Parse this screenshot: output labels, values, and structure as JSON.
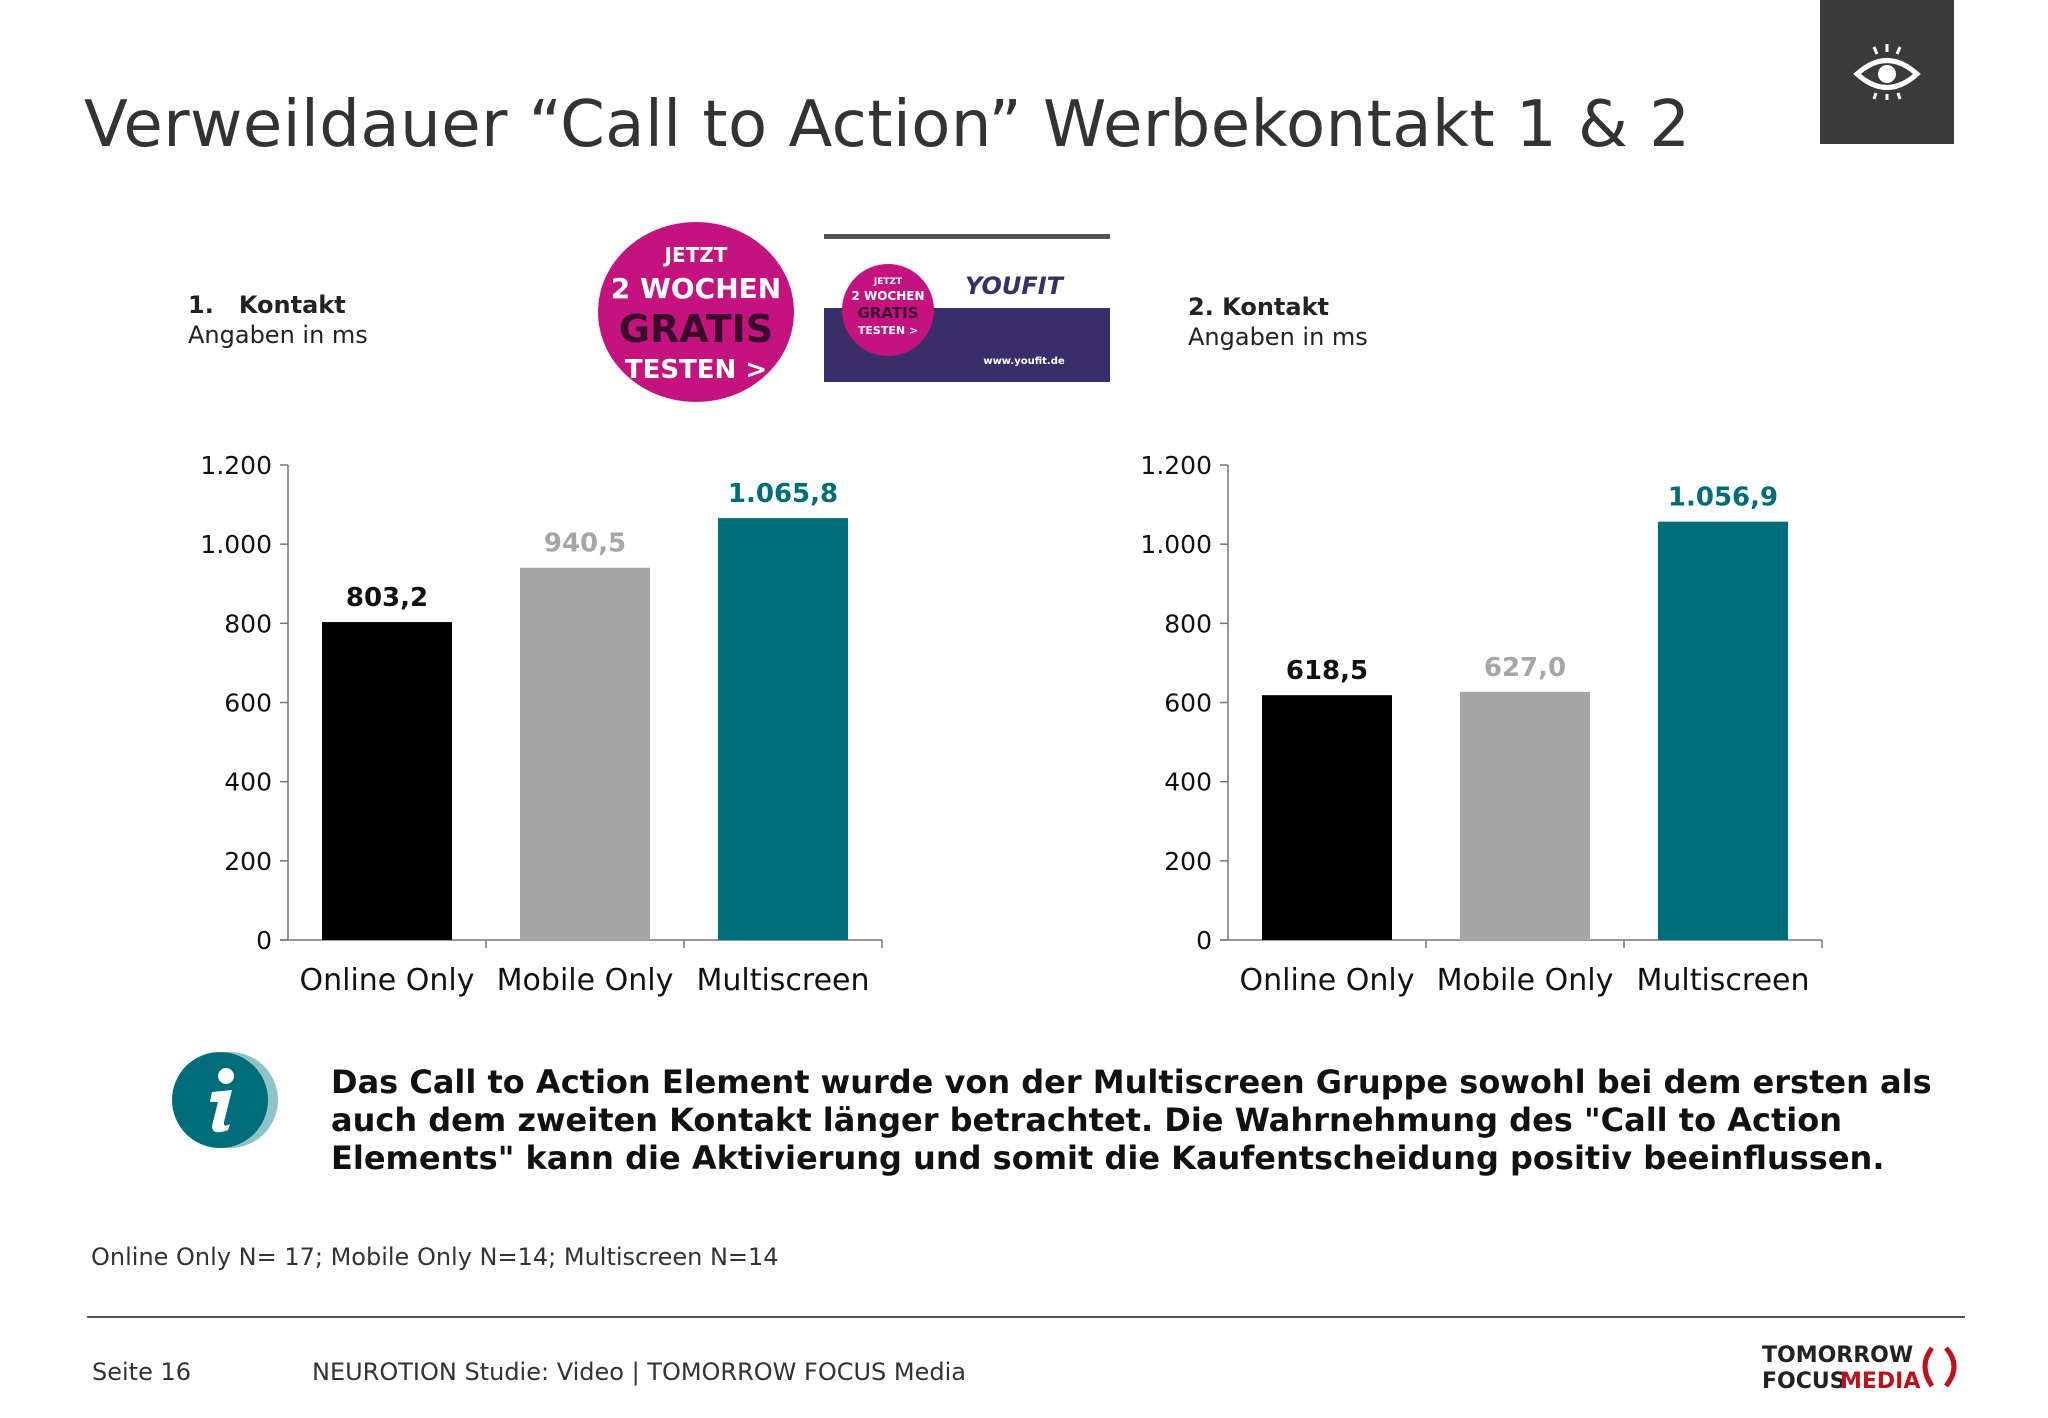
{
  "title": "Verweildauer “Call to Action” Werbekontakt 1 & 2",
  "header_icon": "eye-icon",
  "ads": {
    "circle": {
      "lines": [
        "JETZT",
        "2 WOCHEN",
        "GRATIS",
        "TESTEN >"
      ],
      "color": "#c4127f"
    },
    "banner": {
      "badge_lines": [
        "JETZT",
        "2 WOCHEN",
        "GRATIS",
        "TESTEN >"
      ],
      "brand": "YOUFIT",
      "url": "www.youfit.de"
    }
  },
  "chart_data": [
    {
      "type": "bar",
      "heading": "1.   Kontakt",
      "subheading": "Angaben in ms",
      "categories": [
        "Online Only",
        "Mobile Only",
        "Multiscreen"
      ],
      "values": [
        803.2,
        940.5,
        1065.8
      ],
      "value_labels": [
        "803,2",
        "940,5",
        "1.065,8"
      ],
      "colors": [
        "#000000",
        "#a6a6a6",
        "#006d7a"
      ],
      "label_colors": [
        "#111111",
        "#a6a6a6",
        "#006d7a"
      ],
      "ylim": [
        0,
        1200
      ],
      "yticks": [
        0,
        200,
        400,
        600,
        800,
        1000,
        1200
      ],
      "ytick_labels": [
        "0",
        "200",
        "400",
        "600",
        "800",
        "1.000",
        "1.200"
      ]
    },
    {
      "type": "bar",
      "heading": "2. Kontakt",
      "subheading": "Angaben in ms",
      "categories": [
        "Online Only",
        "Mobile Only",
        "Multiscreen"
      ],
      "values": [
        618.5,
        627.0,
        1056.9
      ],
      "value_labels": [
        "618,5",
        "627,0",
        "1.056,9"
      ],
      "colors": [
        "#000000",
        "#a6a6a6",
        "#006d7a"
      ],
      "label_colors": [
        "#111111",
        "#a6a6a6",
        "#006d7a"
      ],
      "ylim": [
        0,
        1200
      ],
      "yticks": [
        0,
        200,
        400,
        600,
        800,
        1000,
        1200
      ],
      "ytick_labels": [
        "0",
        "200",
        "400",
        "600",
        "800",
        "1.000",
        "1.200"
      ]
    }
  ],
  "info": {
    "icon": "info-icon",
    "text": "Das Call to Action Element wurde von der Multiscreen Gruppe sowohl bei dem ersten als auch dem zweiten Kontakt länger betrachtet. Die Wahrnehmung des \"Call to Action Elements\" kann die Aktivierung und somit die Kaufentscheidung positiv beeinflussen."
  },
  "sample_note": "Online Only N= 17; Mobile Only N=14; Multiscreen N=14",
  "footer": {
    "page": "Seite 16",
    "text": "NEUROTION Studie: Video | TOMORROW FOCUS Media",
    "logo_line1": "TOMORROW",
    "logo_line2a": "FOCUS",
    "logo_line2b": "MEDIA"
  }
}
